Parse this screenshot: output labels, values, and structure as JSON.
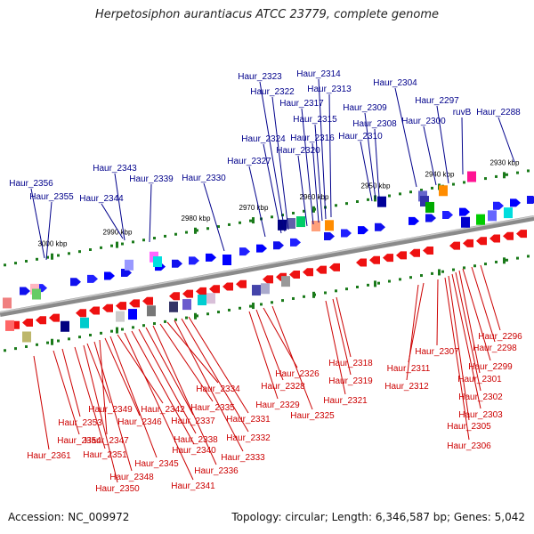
{
  "title": "Herpetosiphon aurantiacus ATCC 23779, complete genome",
  "footer": {
    "accession": "Accession: NC_009972",
    "summary": "Topology: circular; Length: 6,346,587 bp; Genes: 5,042"
  },
  "colors": {
    "forward": "#0000ff",
    "reverse": "#ff0000",
    "forward_label": "#00008b",
    "reverse_label": "#cc0000",
    "backbone": "#8a8a8a",
    "ticks": "#1a7a1a"
  },
  "scale": {
    "unit": "kbp",
    "ticks": [
      "3000 kbp",
      "2990 kbp",
      "2980 kbp",
      "2970 kbp",
      "2960 kbp",
      "2950 kbp",
      "2940 kbp",
      "2930 kbp"
    ]
  },
  "forward_genes": [
    "Haur_2356",
    "Haur_2355",
    "Haur_2344",
    "Haur_2343",
    "Haur_2339",
    "Haur_2330",
    "Haur_2327",
    "Haur_2324",
    "Haur_2323",
    "Haur_2322",
    "Haur_2320",
    "Haur_2317",
    "Haur_2316",
    "Haur_2315",
    "Haur_2314",
    "Haur_2313",
    "Haur_2310",
    "Haur_2309",
    "Haur_2308",
    "Haur_2304",
    "Haur_2300",
    "Haur_2297",
    "ruvB",
    "Haur_2288"
  ],
  "reverse_genes": [
    "Haur_2361",
    "Haur_2354",
    "Haur_2353",
    "Haur_2351",
    "Haur_2350",
    "Haur_2349",
    "Haur_2348",
    "Haur_2347",
    "Haur_2346",
    "Haur_2345",
    "Haur_2342",
    "Haur_2341",
    "Haur_2340",
    "Haur_2338",
    "Haur_2337",
    "Haur_2336",
    "Haur_2335",
    "Haur_2334",
    "Haur_2333",
    "Haur_2332",
    "Haur_2331",
    "Haur_2329",
    "Haur_2328",
    "Haur_2326",
    "Haur_2325",
    "Haur_2321",
    "Haur_2319",
    "Haur_2318",
    "Haur_2312",
    "Haur_2311",
    "Haur_2307",
    "Haur_2306",
    "Haur_2305",
    "Haur_2303",
    "Haur_2302",
    "Haur_2301",
    "Haur_2299",
    "Haur_2298",
    "Haur_2296"
  ]
}
